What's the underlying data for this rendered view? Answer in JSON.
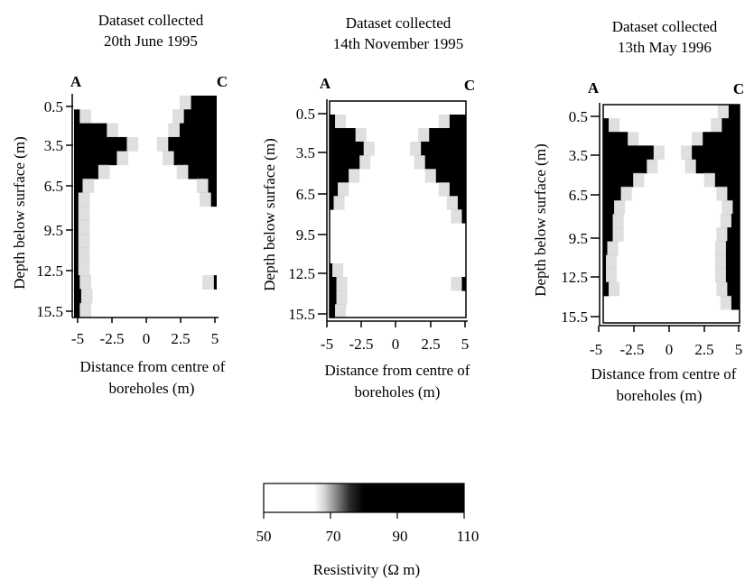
{
  "chart_data": [
    {
      "type": "heatmap",
      "title_line1": "Dataset collected",
      "title_line2": "20th June 1995",
      "corner_left": "A",
      "corner_right": "C",
      "xlabel_line1": "Distance from centre of",
      "xlabel_line2": "boreholes (m)",
      "ylabel": "Depth below surface (m)",
      "xticks": [
        "-5",
        "-2.5",
        "0",
        "2.5",
        "5"
      ],
      "yticks": [
        "0.5",
        "3.5",
        "6.5",
        "9.5",
        "12.5",
        "15.5"
      ],
      "xlim": [
        -5,
        5
      ],
      "ylim": [
        0.5,
        15.5
      ],
      "profile": {
        "depth": [
          0.5,
          1.5,
          2.5,
          3.5,
          4.5,
          5.5,
          6.5,
          7.5,
          8.5,
          9.5,
          10.5,
          11.5,
          12.5,
          13.5,
          14.5,
          15.5
        ],
        "left_dark_extent_m": [
          0.0,
          0.4,
          2.3,
          3.7,
          3.0,
          1.7,
          0.6,
          0.3,
          0.3,
          0.3,
          0.3,
          0.3,
          0.3,
          0.4,
          0.5,
          0.4
        ],
        "right_dark_extent_m": [
          1.8,
          2.3,
          2.6,
          3.4,
          3.0,
          2.0,
          0.6,
          0.4,
          0.0,
          0.0,
          0.0,
          0.0,
          0.0,
          0.2,
          0.0,
          0.0
        ]
      }
    },
    {
      "type": "heatmap",
      "title_line1": "Dataset collected",
      "title_line2": "14th November 1995",
      "corner_left": "A",
      "corner_right": "C",
      "xlabel_line1": "Distance from centre of",
      "xlabel_line2": "boreholes (m)",
      "ylabel": "Depth below surface (m)",
      "xticks": [
        "-5",
        "-2.5",
        "0",
        "2.5",
        "5"
      ],
      "yticks": [
        "0.5",
        "3.5",
        "6.5",
        "9.5",
        "12.5",
        "15.5"
      ],
      "xlim": [
        -5,
        5
      ],
      "ylim": [
        0.5,
        15.5
      ],
      "profile": {
        "depth": [
          0.5,
          1.5,
          2.5,
          3.5,
          4.5,
          5.5,
          6.5,
          7.5,
          8.5,
          9.5,
          10.5,
          11.5,
          12.5,
          13.5,
          14.5,
          15.5
        ],
        "left_dark_extent_m": [
          0.0,
          0.4,
          1.9,
          2.5,
          2.2,
          1.4,
          0.6,
          0.3,
          0.0,
          0.0,
          0.0,
          0.0,
          0.2,
          0.5,
          0.5,
          0.4
        ],
        "right_dark_extent_m": [
          0.0,
          1.2,
          2.7,
          3.3,
          3.0,
          2.2,
          1.2,
          0.6,
          0.3,
          0.0,
          0.0,
          0.0,
          0.0,
          0.3,
          0.0,
          0.0
        ]
      }
    },
    {
      "type": "heatmap",
      "title_line1": "Dataset collected",
      "title_line2": "13th May 1996",
      "corner_left": "A",
      "corner_right": "C",
      "xlabel_line1": "Distance from centre of",
      "xlabel_line2": "boreholes (m)",
      "ylabel": "Depth below surface (m)",
      "xticks": [
        "-5",
        "-2.5",
        "0",
        "2.5",
        "5"
      ],
      "yticks": [
        "0.5",
        "3.5",
        "6.5",
        "9.5",
        "12.5",
        "15.5"
      ],
      "xlim": [
        -5,
        5
      ],
      "ylim": [
        0.5,
        15.5
      ],
      "profile": {
        "depth": [
          0.5,
          1.5,
          2.5,
          3.5,
          4.5,
          5.5,
          6.5,
          7.5,
          8.5,
          9.5,
          10.5,
          11.5,
          12.5,
          13.5,
          14.5,
          15.5
        ],
        "left_dark_extent_m": [
          0.0,
          0.4,
          1.8,
          3.7,
          3.2,
          2.2,
          1.3,
          0.8,
          0.7,
          0.7,
          0.3,
          0.2,
          0.2,
          0.4,
          0.0,
          0.0
        ],
        "right_dark_extent_m": [
          0.8,
          1.3,
          2.7,
          3.5,
          3.2,
          1.8,
          0.9,
          0.5,
          0.6,
          0.9,
          1.0,
          1.0,
          1.0,
          0.9,
          0.6,
          0.0
        ]
      }
    },
    {
      "type": "colorbar",
      "ticks": [
        "50",
        "70",
        "90",
        "110"
      ],
      "range": [
        50,
        110
      ],
      "label": "Resistivity (Ω m)",
      "colors": {
        "low": "#ffffff",
        "high": "#000000"
      }
    }
  ]
}
